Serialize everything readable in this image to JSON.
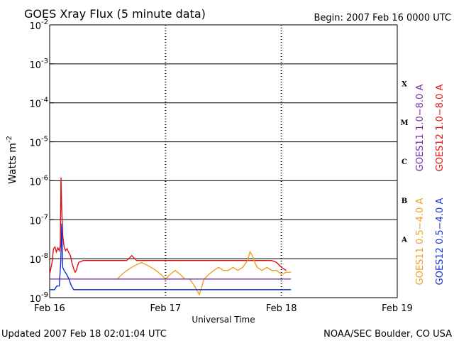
{
  "chart_data": {
    "type": "line",
    "title": "GOES Xray Flux (5 minute data)",
    "begin_label": "Begin:  2007 Feb 16 0000 UTC",
    "xlabel": "Universal Time",
    "ylabel": "Watts m",
    "ylabel_sup": "-2",
    "y_scale": "log",
    "ylim": [
      1e-09,
      0.01
    ],
    "xlim_hours": [
      0,
      72
    ],
    "x_ticks": [
      {
        "hour": 0,
        "label": "Feb 16"
      },
      {
        "hour": 24,
        "label": "Feb 17"
      },
      {
        "hour": 48,
        "label": "Feb 18"
      },
      {
        "hour": 72,
        "label": "Feb 19"
      }
    ],
    "y_ticks": [
      {
        "exp": -9,
        "label": "10",
        "sup": "-9"
      },
      {
        "exp": -8,
        "label": "10",
        "sup": "-8"
      },
      {
        "exp": -7,
        "label": "10",
        "sup": "-7"
      },
      {
        "exp": -6,
        "label": "10",
        "sup": "-6"
      },
      {
        "exp": -5,
        "label": "10",
        "sup": "-5"
      },
      {
        "exp": -4,
        "label": "10",
        "sup": "-4"
      },
      {
        "exp": -3,
        "label": "10",
        "sup": "-3"
      },
      {
        "exp": -2,
        "label": "10",
        "sup": "-2"
      }
    ],
    "class_bands": [
      {
        "label": "A",
        "exp": -7.5
      },
      {
        "label": "B",
        "exp": -6.5
      },
      {
        "label": "C",
        "exp": -5.5
      },
      {
        "label": "M",
        "exp": -4.5
      },
      {
        "label": "X",
        "exp": -3.5
      }
    ],
    "grid": true,
    "legend": [
      {
        "text": "GOES11  1.0−8.0  A",
        "color": "#7030a0"
      },
      {
        "text": "GOES12  1.0−8.0  A",
        "color": "#e01010"
      },
      {
        "text": "GOES11  0.5−4.0  A",
        "color": "#f0a020"
      },
      {
        "text": "GOES12  0.5−4.0  A",
        "color": "#1030d0"
      }
    ],
    "series": [
      {
        "name": "GOES12  1.0−8.0  A",
        "color": "#e01010",
        "x": [
          0,
          0.5,
          0.8,
          1.1,
          1.4,
          1.7,
          2.0,
          2.2,
          2.35,
          2.5,
          2.7,
          3.0,
          3.3,
          3.6,
          4.0,
          4.3,
          4.6,
          4.9,
          5.1,
          5.3,
          5.5,
          6,
          7,
          8,
          9,
          10,
          11,
          12,
          13,
          14,
          15,
          16,
          17,
          18,
          19,
          20,
          21,
          22,
          23,
          24,
          25,
          26,
          27,
          28,
          29,
          30,
          31,
          32,
          33,
          34,
          35,
          36,
          37,
          38,
          39,
          40,
          41,
          42,
          43,
          44,
          45,
          46,
          47,
          48,
          49
        ],
        "values": [
          4e-09,
          8e-09,
          1.8e-08,
          2e-08,
          1.5e-08,
          1.9e-08,
          1.6e-08,
          2.2e-08,
          1.2e-06,
          2e-07,
          4e-08,
          2e-08,
          1.6e-08,
          1.8e-08,
          1.4e-08,
          1.2e-08,
          8e-09,
          6e-09,
          5e-09,
          4.5e-09,
          5e-09,
          8e-09,
          9e-09,
          9e-09,
          9e-09,
          9e-09,
          9e-09,
          9e-09,
          9e-09,
          9e-09,
          9e-09,
          9e-09,
          1.2e-08,
          9e-09,
          9e-09,
          9e-09,
          9e-09,
          9e-09,
          9e-09,
          9e-09,
          9e-09,
          9e-09,
          9e-09,
          9e-09,
          9e-09,
          9e-09,
          9e-09,
          9e-09,
          9e-09,
          9e-09,
          9e-09,
          9e-09,
          9e-09,
          9e-09,
          9e-09,
          9e-09,
          9e-09,
          9e-09,
          9e-09,
          9e-09,
          9e-09,
          9e-09,
          8e-09,
          6e-09,
          5e-09
        ]
      },
      {
        "name": "GOES11  0.5−4.0  A",
        "color": "#f0a020",
        "x": [
          14,
          15,
          16,
          17,
          18,
          19,
          20,
          21,
          22,
          23,
          24,
          25,
          26,
          27,
          28,
          29,
          30,
          31,
          32,
          33,
          34,
          35,
          36,
          37,
          38,
          39,
          40,
          41,
          41.5,
          42,
          42.5,
          43,
          44,
          45,
          46,
          47,
          48,
          49,
          50
        ],
        "values": [
          3e-09,
          4e-09,
          5e-09,
          6e-09,
          7e-09,
          8e-09,
          7e-09,
          6e-09,
          5e-09,
          4e-09,
          3e-09,
          4e-09,
          5e-09,
          4e-09,
          3e-09,
          3e-09,
          2e-09,
          1.2e-09,
          3e-09,
          4e-09,
          5e-09,
          6e-09,
          5e-09,
          5e-09,
          6e-09,
          5e-09,
          6e-09,
          9e-09,
          1.5e-08,
          1.2e-08,
          8e-09,
          6e-09,
          5e-09,
          6e-09,
          5e-09,
          5e-09,
          4e-09,
          4.5e-09,
          4.5e-09
        ]
      },
      {
        "name": "GOES11  1.0−8.0  A",
        "color": "#7030a0",
        "x": [
          0,
          2,
          4,
          6,
          8,
          10,
          12,
          14,
          16,
          18,
          20,
          22,
          24,
          26,
          28,
          30,
          32,
          34,
          36,
          38,
          40,
          42,
          44,
          46,
          48,
          50
        ],
        "values": [
          3e-09,
          3e-09,
          3e-09,
          3e-09,
          3e-09,
          3e-09,
          3e-09,
          3e-09,
          3e-09,
          3e-09,
          3e-09,
          3e-09,
          3e-09,
          3e-09,
          3e-09,
          3e-09,
          3e-09,
          3e-09,
          3e-09,
          3e-09,
          3e-09,
          3e-09,
          3e-09,
          3e-09,
          3e-09,
          3e-09
        ]
      },
      {
        "name": "GOES12  0.5−4.0  A",
        "color": "#1030d0",
        "x": [
          0,
          0.5,
          1,
          1.5,
          2,
          2.3,
          2.5,
          2.7,
          3,
          3.5,
          4,
          4.5,
          5,
          6,
          7,
          8,
          9,
          10,
          11,
          12,
          13,
          14,
          15,
          16,
          17,
          18,
          19,
          20,
          21,
          22,
          23,
          24,
          25,
          26,
          27,
          28,
          29,
          30,
          31,
          32,
          33,
          34,
          35,
          36,
          37,
          38,
          39,
          40,
          41,
          42,
          43,
          44,
          45,
          46,
          47,
          48,
          49,
          50
        ],
        "values": [
          1.6e-09,
          1.6e-09,
          1.6e-09,
          2e-09,
          2e-09,
          9e-09,
          8e-08,
          6e-09,
          5e-09,
          4e-09,
          3e-09,
          2e-09,
          1.6e-09,
          1.6e-09,
          1.6e-09,
          1.6e-09,
          1.6e-09,
          1.6e-09,
          1.6e-09,
          1.6e-09,
          1.6e-09,
          1.6e-09,
          1.6e-09,
          1.6e-09,
          1.6e-09,
          1.6e-09,
          1.6e-09,
          1.6e-09,
          1.6e-09,
          1.6e-09,
          1.6e-09,
          1.6e-09,
          1.6e-09,
          1.6e-09,
          1.6e-09,
          1.6e-09,
          1.6e-09,
          1.6e-09,
          1.6e-09,
          1.6e-09,
          1.6e-09,
          1.6e-09,
          1.6e-09,
          1.6e-09,
          1.6e-09,
          1.6e-09,
          1.6e-09,
          1.6e-09,
          1.6e-09,
          1.6e-09,
          1.6e-09,
          1.6e-09,
          1.6e-09,
          1.6e-09,
          1.6e-09,
          1.6e-09,
          1.6e-09,
          1.6e-09
        ]
      }
    ]
  },
  "footer": {
    "updated": "Updated 2007 Feb 18 02:01:04 UTC",
    "credit": "NOAA/SEC Boulder, CO USA"
  }
}
